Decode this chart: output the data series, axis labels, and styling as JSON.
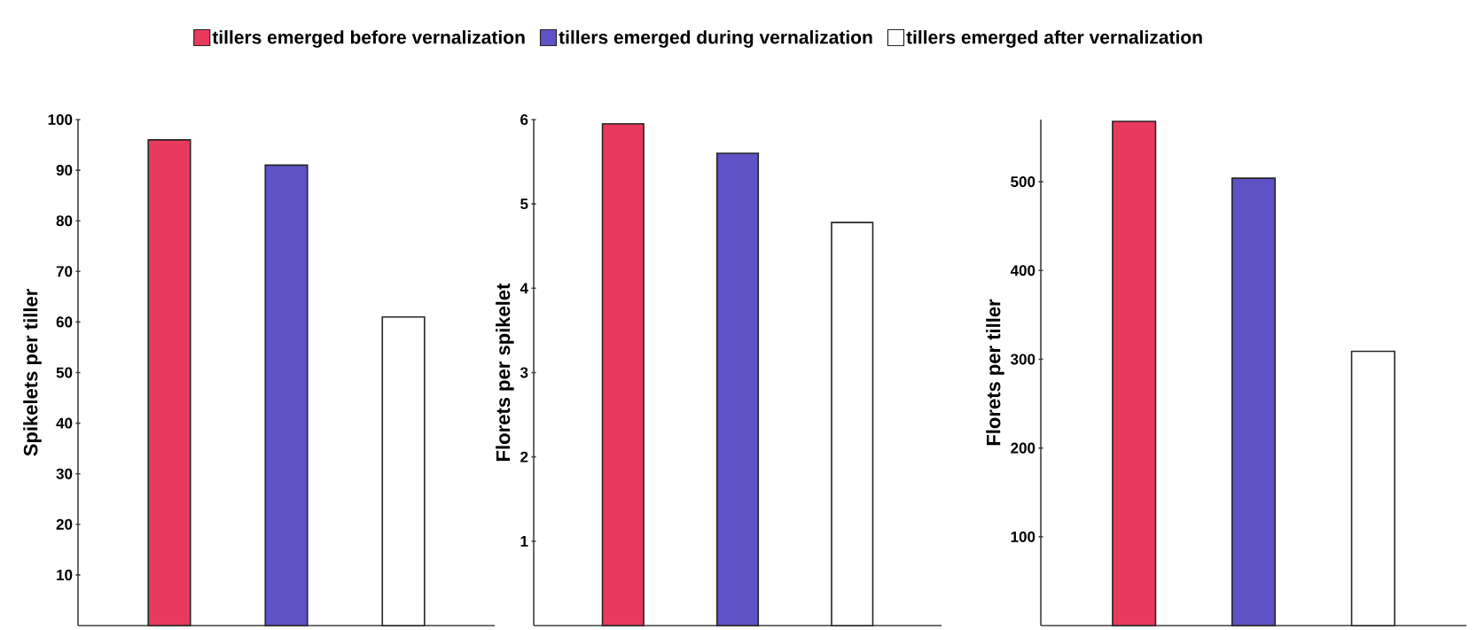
{
  "chart_data": [
    {
      "type": "bar",
      "ylabel": "Spikelets per tiller",
      "categories": [
        null,
        null,
        null
      ],
      "series": [
        {
          "name": "tillers emerged before vernalization",
          "color": "#e83a5c",
          "values": [
            96,
            null,
            null
          ]
        },
        {
          "name": "tillers emerged during vernalization",
          "color": "#5e52c6",
          "values": [
            null,
            91,
            null
          ]
        },
        {
          "name": "tillers emerged after vernalization",
          "color": "#ffffff",
          "values": [
            null,
            null,
            61
          ]
        }
      ],
      "ylim": [
        0,
        100
      ],
      "yticks": [
        10,
        20,
        30,
        40,
        50,
        60,
        70,
        80,
        90,
        100
      ],
      "legend": "top"
    },
    {
      "type": "bar",
      "ylabel": "Florets per spikelet",
      "categories": [
        null,
        null,
        null
      ],
      "series": [
        {
          "color": "#e83a5c",
          "values": [
            5.95,
            null,
            null
          ]
        },
        {
          "color": "#5e52c6",
          "values": [
            null,
            5.6,
            null
          ]
        },
        {
          "color": "#ffffff",
          "values": [
            null,
            null,
            4.78
          ]
        }
      ],
      "ylim": [
        0,
        6
      ],
      "yticks": [
        1,
        2,
        3,
        4,
        5,
        6
      ]
    },
    {
      "type": "bar",
      "ylabel": "Florets per tiller",
      "categories": [
        null,
        null,
        null
      ],
      "series": [
        {
          "color": "#e83a5c",
          "values": [
            568,
            null,
            null
          ]
        },
        {
          "color": "#5e52c6",
          "values": [
            null,
            504,
            null
          ]
        },
        {
          "color": "#ffffff",
          "values": [
            null,
            null,
            309
          ]
        }
      ],
      "ylim": [
        0,
        570
      ],
      "yticks": [
        100,
        200,
        300,
        400,
        500
      ]
    }
  ]
}
